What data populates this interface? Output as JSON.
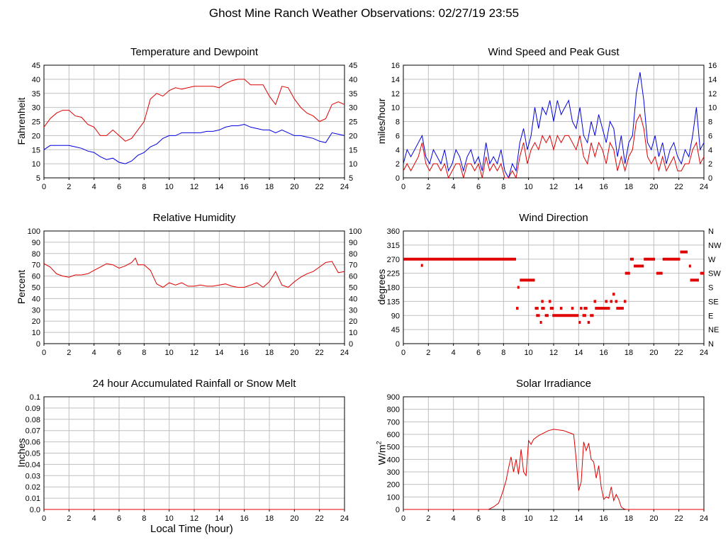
{
  "page": {
    "title": "Ghost Mine Ranch Weather Observations: 02/27/19 23:55"
  },
  "chart_data": [
    {
      "id": "temp",
      "type": "line",
      "title": "Temperature and Dewpoint",
      "xlabel": "",
      "ylabel": "Fahrenheit",
      "xlim": [
        0,
        24
      ],
      "ylim": [
        5,
        45
      ],
      "xticks": [
        0,
        2,
        4,
        6,
        8,
        10,
        12,
        14,
        16,
        18,
        20,
        22,
        24
      ],
      "yticks": [
        5,
        10,
        15,
        20,
        25,
        30,
        35,
        40,
        45
      ],
      "right_axis_ticks": [
        "5",
        "10",
        "15",
        "20",
        "25",
        "30",
        "35",
        "40",
        "45"
      ],
      "grid": true,
      "series": [
        {
          "color": "#e00000",
          "x": [
            0,
            0.5,
            1,
            1.5,
            2,
            2.5,
            3,
            3.5,
            4,
            4.5,
            5,
            5.5,
            6,
            6.5,
            7,
            7.5,
            8,
            8.5,
            9,
            9.5,
            10,
            10.5,
            11,
            11.5,
            12,
            12.5,
            13,
            13.5,
            14,
            14.5,
            15,
            15.5,
            16,
            16.5,
            17,
            17.5,
            18,
            18.5,
            19,
            19.5,
            20,
            20.5,
            21,
            21.5,
            22,
            22.5,
            23,
            23.5,
            24
          ],
          "y": [
            23,
            26,
            28,
            29,
            29,
            27,
            26.5,
            24,
            23,
            20,
            20,
            22,
            20,
            18,
            19,
            22,
            25,
            33,
            35,
            34,
            36,
            37,
            36.5,
            37,
            37.5,
            37.5,
            37.5,
            37.5,
            37,
            38.5,
            39.5,
            40,
            40,
            38,
            38,
            38,
            34,
            31,
            37.5,
            37,
            33,
            30,
            28,
            27,
            25,
            26,
            31,
            32,
            31
          ]
        },
        {
          "color": "#0000e0",
          "x": [
            0,
            0.5,
            1,
            1.5,
            2,
            2.5,
            3,
            3.5,
            4,
            4.5,
            5,
            5.5,
            6,
            6.5,
            7,
            7.5,
            8,
            8.5,
            9,
            9.5,
            10,
            10.5,
            11,
            11.5,
            12,
            12.5,
            13,
            13.5,
            14,
            14.5,
            15,
            15.5,
            16,
            16.5,
            17,
            17.5,
            18,
            18.5,
            19,
            19.5,
            20,
            20.5,
            21,
            21.5,
            22,
            22.5,
            23,
            23.5,
            24
          ],
          "y": [
            15,
            16.5,
            16.5,
            16.5,
            16.5,
            16,
            15.5,
            14.5,
            14,
            12.5,
            11.5,
            12,
            10.5,
            10,
            11,
            13,
            14,
            16,
            17,
            19,
            20,
            20,
            21,
            21,
            21,
            21,
            21.5,
            21.5,
            22,
            23,
            23.5,
            23.5,
            24,
            23,
            22.5,
            22,
            22,
            21,
            22,
            21,
            20,
            20,
            19.5,
            19,
            18,
            17.5,
            21,
            20.5,
            20
          ]
        }
      ]
    },
    {
      "id": "wind",
      "type": "line",
      "title": "Wind Speed and Peak Gust",
      "xlabel": "",
      "ylabel": "miles/hour",
      "xlim": [
        0,
        24
      ],
      "ylim": [
        0,
        16
      ],
      "xticks": [
        0,
        2,
        4,
        6,
        8,
        10,
        12,
        14,
        16,
        18,
        20,
        22,
        24
      ],
      "yticks": [
        0,
        2,
        4,
        6,
        8,
        10,
        12,
        14,
        16
      ],
      "right_axis_ticks": [
        "0",
        "2",
        "4",
        "6",
        "8",
        "10",
        "12",
        "14",
        "16"
      ],
      "grid": true,
      "series": [
        {
          "color": "#0000e0",
          "x": [
            0,
            0.3,
            0.6,
            0.9,
            1.2,
            1.5,
            1.8,
            2.1,
            2.4,
            2.7,
            3,
            3.3,
            3.6,
            3.9,
            4.2,
            4.5,
            4.8,
            5.1,
            5.4,
            5.7,
            6,
            6.3,
            6.6,
            6.9,
            7.2,
            7.5,
            7.8,
            8.1,
            8.4,
            8.7,
            9,
            9.3,
            9.6,
            9.9,
            10.2,
            10.5,
            10.8,
            11.1,
            11.4,
            11.7,
            12,
            12.3,
            12.6,
            12.9,
            13.2,
            13.5,
            13.8,
            14.1,
            14.4,
            14.7,
            15,
            15.3,
            15.6,
            15.9,
            16.2,
            16.5,
            16.8,
            17.1,
            17.4,
            17.7,
            18,
            18.3,
            18.6,
            18.9,
            19.2,
            19.5,
            19.8,
            20.1,
            20.4,
            20.7,
            21,
            21.3,
            21.6,
            21.9,
            22.2,
            22.5,
            22.8,
            23.1,
            23.4,
            23.7,
            24
          ],
          "y": [
            2,
            4,
            3,
            4,
            5,
            6,
            3,
            2,
            4,
            3,
            2,
            4,
            1,
            2,
            4,
            3,
            1,
            3,
            4,
            2,
            3,
            1,
            5,
            2,
            3,
            2,
            4,
            1,
            0,
            2,
            1,
            5,
            7,
            4,
            6,
            10,
            7,
            10,
            9,
            11,
            8,
            11,
            9,
            10,
            11,
            8,
            7,
            10,
            6,
            5,
            8,
            6,
            9,
            7,
            5,
            8,
            7,
            3,
            6,
            2,
            5,
            6,
            12,
            15,
            11,
            5,
            4,
            6,
            3,
            5,
            2,
            4,
            5,
            3,
            2,
            4,
            3,
            6,
            10,
            4,
            5
          ]
        },
        {
          "color": "#e00000",
          "x": [
            0,
            0.3,
            0.6,
            0.9,
            1.2,
            1.5,
            1.8,
            2.1,
            2.4,
            2.7,
            3,
            3.3,
            3.6,
            3.9,
            4.2,
            4.5,
            4.8,
            5.1,
            5.4,
            5.7,
            6,
            6.3,
            6.6,
            6.9,
            7.2,
            7.5,
            7.8,
            8.1,
            8.4,
            8.7,
            9,
            9.3,
            9.6,
            9.9,
            10.2,
            10.5,
            10.8,
            11.1,
            11.4,
            11.7,
            12,
            12.3,
            12.6,
            12.9,
            13.2,
            13.5,
            13.8,
            14.1,
            14.4,
            14.7,
            15,
            15.3,
            15.6,
            15.9,
            16.2,
            16.5,
            16.8,
            17.1,
            17.4,
            17.7,
            18,
            18.3,
            18.6,
            18.9,
            19.2,
            19.5,
            19.8,
            20.1,
            20.4,
            20.7,
            21,
            21.3,
            21.6,
            21.9,
            22.2,
            22.5,
            22.8,
            23.1,
            23.4,
            23.7,
            24
          ],
          "y": [
            1,
            2,
            1,
            2,
            3,
            5,
            2,
            1,
            2,
            2,
            1,
            2,
            0,
            1,
            2,
            2,
            0,
            2,
            2,
            1,
            2,
            0,
            3,
            1,
            2,
            1,
            2,
            0,
            0,
            1,
            0,
            3,
            5,
            2,
            4,
            5,
            4,
            6,
            5,
            6,
            4,
            6,
            5,
            6,
            6,
            5,
            4,
            6,
            3,
            2,
            5,
            3,
            5,
            4,
            2,
            5,
            4,
            1,
            3,
            1,
            3,
            4,
            8,
            9,
            7,
            3,
            2,
            3,
            1,
            3,
            1,
            2,
            3,
            1,
            1,
            2,
            2,
            4,
            5,
            2,
            3
          ]
        }
      ]
    },
    {
      "id": "rh",
      "type": "line",
      "title": "Relative Humidity",
      "xlabel": "",
      "ylabel": "Percent",
      "xlim": [
        0,
        24
      ],
      "ylim": [
        0,
        100
      ],
      "xticks": [
        0,
        2,
        4,
        6,
        8,
        10,
        12,
        14,
        16,
        18,
        20,
        22,
        24
      ],
      "yticks": [
        0,
        10,
        20,
        30,
        40,
        50,
        60,
        70,
        80,
        90,
        100
      ],
      "right_axis_ticks": [
        "0",
        "10",
        "20",
        "30",
        "40",
        "50",
        "60",
        "70",
        "80",
        "90",
        "100"
      ],
      "grid": true,
      "series": [
        {
          "color": "#e00000",
          "x": [
            0,
            0.5,
            1,
            1.5,
            2,
            2.5,
            3,
            3.5,
            4,
            4.5,
            5,
            5.5,
            6,
            6.5,
            7,
            7.3,
            7.5,
            8,
            8.5,
            9,
            9.5,
            10,
            10.5,
            11,
            11.5,
            12,
            12.5,
            13,
            13.5,
            14,
            14.5,
            15,
            15.5,
            16,
            16.5,
            17,
            17.5,
            18,
            18.5,
            19,
            19.5,
            20,
            20.5,
            21,
            21.5,
            22,
            22.5,
            23,
            23.5,
            24
          ],
          "y": [
            71,
            68,
            62,
            60,
            59,
            61,
            61,
            62,
            65,
            68,
            71,
            70,
            67,
            69,
            72,
            76,
            70,
            70,
            65,
            53,
            50,
            54,
            52,
            54,
            51,
            51,
            52,
            51,
            51,
            52,
            53,
            51,
            50,
            50,
            52,
            54,
            50,
            55,
            64,
            52,
            50,
            55,
            59,
            62,
            64,
            68,
            72,
            73,
            63,
            64
          ]
        }
      ]
    },
    {
      "id": "wdir",
      "type": "scatter",
      "title": "Wind Direction",
      "xlabel": "",
      "ylabel": "degrees",
      "xlim": [
        0,
        24
      ],
      "ylim": [
        0,
        360
      ],
      "xticks": [
        0,
        2,
        4,
        6,
        8,
        10,
        12,
        14,
        16,
        18,
        20,
        22,
        24
      ],
      "yticks": [
        0,
        45,
        90,
        135,
        180,
        225,
        270,
        315,
        360
      ],
      "right_axis_ticks": [
        "N",
        "NE",
        "E",
        "SE",
        "S",
        "SW",
        "W",
        "NW",
        "N"
      ],
      "grid": true,
      "segments": [
        [
          0,
          9,
          270
        ],
        [
          1.4,
          1.5,
          250
        ],
        [
          9,
          9.2,
          113
        ],
        [
          9.1,
          9.2,
          180
        ],
        [
          9.3,
          10.5,
          203
        ],
        [
          10.5,
          10.8,
          113
        ],
        [
          10.6,
          10.9,
          90
        ],
        [
          10.9,
          11,
          68
        ],
        [
          11,
          11.2,
          135
        ],
        [
          11,
          11.3,
          113
        ],
        [
          11.3,
          11.6,
          90
        ],
        [
          11.6,
          11.8,
          135
        ],
        [
          11.7,
          12,
          113
        ],
        [
          11.9,
          14,
          90
        ],
        [
          12.5,
          12.7,
          113
        ],
        [
          13.4,
          13.6,
          113
        ],
        [
          14,
          14.1,
          68
        ],
        [
          14.1,
          14.3,
          113
        ],
        [
          14.3,
          14.6,
          90
        ],
        [
          14.4,
          14.7,
          113
        ],
        [
          14.7,
          14.9,
          68
        ],
        [
          14.9,
          15.2,
          90
        ],
        [
          15.2,
          15.4,
          135
        ],
        [
          15.3,
          16.5,
          113
        ],
        [
          16.1,
          16.3,
          135
        ],
        [
          16.5,
          16.7,
          135
        ],
        [
          16.7,
          16.9,
          158
        ],
        [
          16.9,
          17.1,
          135
        ],
        [
          17,
          17.6,
          113
        ],
        [
          17.6,
          17.8,
          135
        ],
        [
          17.7,
          18.1,
          225
        ],
        [
          18.1,
          18.4,
          270
        ],
        [
          18.4,
          19.2,
          248
        ],
        [
          19.2,
          20.1,
          270
        ],
        [
          20.2,
          20.7,
          225
        ],
        [
          20.7,
          22.1,
          270
        ],
        [
          22.1,
          22.7,
          293
        ],
        [
          22.8,
          22.9,
          248
        ],
        [
          22.9,
          23.6,
          203
        ],
        [
          23.7,
          24,
          225
        ]
      ],
      "series": [
        {
          "color": "#e00000"
        }
      ]
    },
    {
      "id": "rain",
      "type": "line",
      "title": "24 hour Accumulated Rainfall or Snow Melt",
      "xlabel": "Local Time (hour)",
      "ylabel": "Inches",
      "xlim": [
        0,
        24
      ],
      "ylim": [
        0,
        0.1
      ],
      "xticks": [
        0,
        2,
        4,
        6,
        8,
        10,
        12,
        14,
        16,
        18,
        20,
        22,
        24
      ],
      "yticks": [
        0,
        0.01,
        0.02,
        0.03,
        0.04,
        0.05,
        0.06,
        0.07,
        0.08,
        0.09,
        0.1
      ],
      "ytick_labels": [
        "0.0",
        "0.01",
        "0.02",
        "0.03",
        "0.04",
        "0.05",
        "0.06",
        "0.07",
        "0.08",
        "0.09",
        "0.1"
      ],
      "grid": true,
      "series": [
        {
          "color": "#e00000",
          "x": [
            0,
            24
          ],
          "y": [
            0,
            0
          ]
        }
      ]
    },
    {
      "id": "solar",
      "type": "line",
      "title": "Solar Irradiance",
      "xlabel": "",
      "ylabel": "W/m",
      "ylabel_sup": "2",
      "xlim": [
        0,
        24
      ],
      "ylim": [
        0,
        900
      ],
      "xticks": [
        0,
        2,
        4,
        6,
        8,
        10,
        12,
        14,
        16,
        18,
        20,
        22,
        24
      ],
      "yticks": [
        0,
        100,
        200,
        300,
        400,
        500,
        600,
        700,
        800,
        900
      ],
      "grid": true,
      "series": [
        {
          "color": "#e00000",
          "x": [
            0,
            6.8,
            7.2,
            7.6,
            7.8,
            8,
            8.2,
            8.4,
            8.6,
            8.8,
            9,
            9.2,
            9.4,
            9.6,
            9.8,
            10,
            10.2,
            10.4,
            10.8,
            11.2,
            11.6,
            12,
            12.4,
            12.8,
            13.2,
            13.6,
            13.8,
            14,
            14.2,
            14.4,
            14.6,
            14.8,
            15,
            15.2,
            15.4,
            15.6,
            15.8,
            16,
            16.2,
            16.4,
            16.6,
            16.8,
            17,
            17.2,
            17.4,
            17.6,
            17.8,
            18,
            24
          ],
          "y": [
            0,
            0,
            20,
            50,
            100,
            160,
            230,
            330,
            420,
            300,
            400,
            280,
            480,
            300,
            270,
            550,
            520,
            560,
            590,
            610,
            630,
            640,
            635,
            630,
            615,
            600,
            400,
            150,
            220,
            540,
            470,
            530,
            400,
            380,
            250,
            350,
            180,
            80,
            100,
            90,
            180,
            70,
            120,
            80,
            20,
            5,
            0,
            0,
            0
          ]
        }
      ]
    }
  ]
}
